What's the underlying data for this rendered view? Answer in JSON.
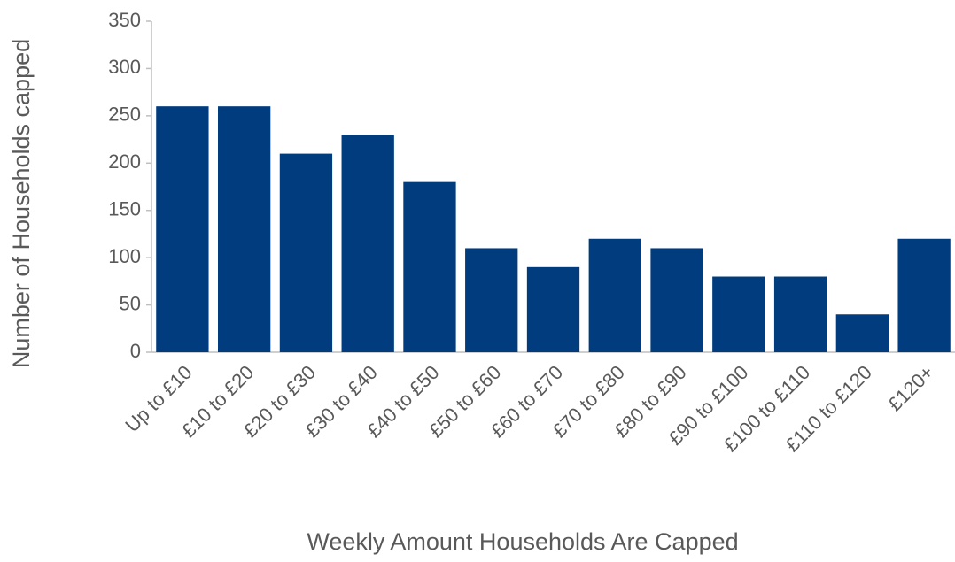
{
  "chart_data": {
    "type": "bar",
    "x_label": "Weekly Amount Households Are Capped",
    "y_label": "Number of Households capped",
    "categories": [
      "Up to £10",
      "£10 to £20",
      "£20 to £30",
      "£30 to £40",
      "£40 to £50",
      "£50 to £60",
      "£60 to £70",
      "£70 to £80",
      "£80 to £90",
      "£90 to £100",
      "£100 to £110",
      "£110 to £120",
      "£120+"
    ],
    "values": [
      260,
      260,
      210,
      230,
      180,
      110,
      90,
      120,
      110,
      80,
      80,
      40,
      120
    ],
    "color": "#003c7e",
    "ylim": [
      0,
      350
    ],
    "yticks": [
      0,
      50,
      100,
      150,
      200,
      250,
      300,
      350
    ],
    "grid": false
  }
}
